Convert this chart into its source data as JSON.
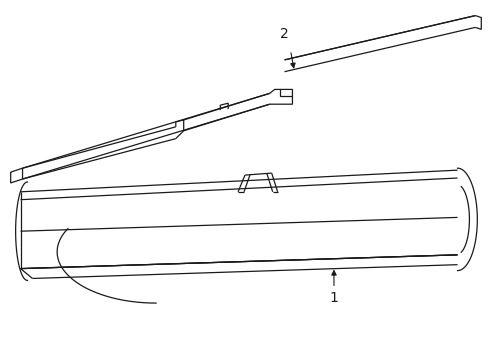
{
  "background_color": "#ffffff",
  "line_color": "#1a1a1a",
  "line_width": 0.9,
  "label1": "1",
  "label2": "2"
}
